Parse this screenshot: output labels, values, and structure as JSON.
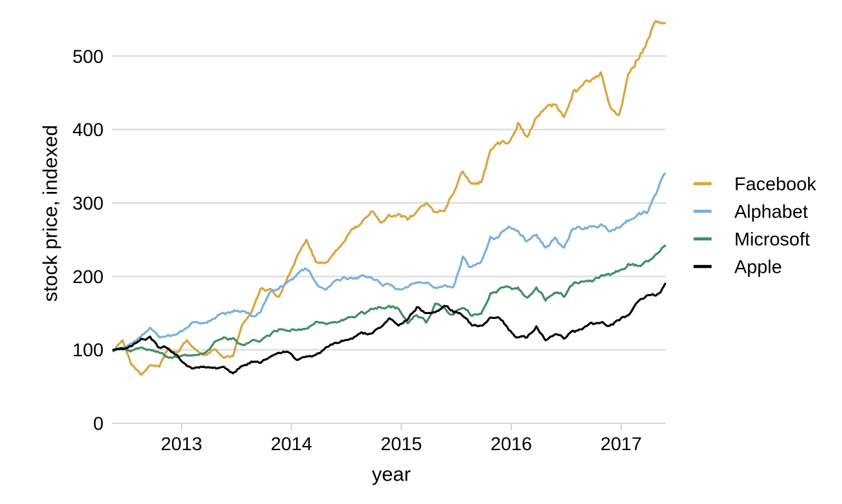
{
  "chart_data": {
    "type": "line",
    "title": "",
    "xlabel": "year",
    "ylabel": "stock price, indexed",
    "x_ticks": [
      2013,
      2014,
      2015,
      2016,
      2017
    ],
    "y_ticks": [
      0,
      100,
      200,
      300,
      400,
      500
    ],
    "x_range": [
      2012.38,
      2017.4
    ],
    "ylim": [
      0,
      560
    ],
    "grid": "horizontal",
    "grid_color": "#d9d9d9",
    "axis_tick_color": "#d4d4d4",
    "text_color": "#000000",
    "background_color": "#ffffff",
    "legend_position": "right-center",
    "sampling": "monthly, May 2012 through May 2017, index = 100 in June 2012",
    "series": [
      {
        "name": "Facebook",
        "color": "#d9a43c",
        "values": [
          100,
          113,
          79,
          66,
          79,
          77,
          102,
          97,
          113,
          100,
          93,
          101,
          89,
          91,
          134,
          151,
          183,
          183,
          172,
          200,
          228,
          250,
          220,
          218,
          231,
          246,
          265,
          273,
          288,
          274,
          284,
          285,
          277,
          288,
          300,
          288,
          289,
          313,
          343,
          326,
          328,
          372,
          380,
          382,
          409,
          390,
          416,
          429,
          434,
          417,
          452,
          460,
          468,
          478,
          432,
          420,
          476,
          495,
          519,
          548,
          545
        ]
      },
      {
        "name": "Alphabet",
        "color": "#77b1de",
        "values": [
          100,
          100,
          109,
          118,
          130,
          117,
          120,
          122,
          130,
          138,
          137,
          142,
          150,
          152,
          153,
          146,
          151,
          178,
          183,
          193,
          203,
          210,
          192,
          182,
          193,
          199,
          197,
          201,
          199,
          191,
          189,
          183,
          185,
          192,
          191,
          185,
          188,
          186,
          227,
          213,
          220,
          254,
          256,
          268,
          262,
          248,
          257,
          239,
          253,
          239,
          265,
          264,
          268,
          271,
          261,
          266,
          275,
          284,
          286,
          312,
          340
        ]
      },
      {
        "name": "Microsoft",
        "color": "#3e8e63",
        "values": [
          98,
          103,
          99,
          103,
          100,
          96,
          89,
          90,
          92,
          93,
          96,
          111,
          117,
          116,
          107,
          112,
          112,
          119,
          128,
          126,
          127,
          129,
          138,
          136,
          138,
          140,
          145,
          152,
          156,
          158,
          160,
          156,
          136,
          147,
          137,
          163,
          157,
          148,
          157,
          146,
          149,
          177,
          183,
          186,
          185,
          171,
          185,
          167,
          178,
          172,
          190,
          193,
          193,
          201,
          202,
          208,
          217,
          214,
          221,
          230,
          242
        ]
      },
      {
        "name": "Apple",
        "color": "#000000",
        "values": [
          100,
          101,
          105,
          115,
          118,
          103,
          101,
          92,
          78,
          76,
          76,
          76,
          77,
          68,
          78,
          84,
          82,
          90,
          96,
          97,
          86,
          91,
          93,
          102,
          109,
          112,
          115,
          124,
          122,
          130,
          143,
          133,
          141,
          158,
          150,
          151,
          160,
          151,
          146,
          133,
          133,
          144,
          143,
          127,
          117,
          117,
          132,
          113,
          121,
          115,
          126,
          128,
          137,
          137,
          133,
          140,
          147,
          165,
          174,
          174,
          190
        ]
      }
    ]
  }
}
